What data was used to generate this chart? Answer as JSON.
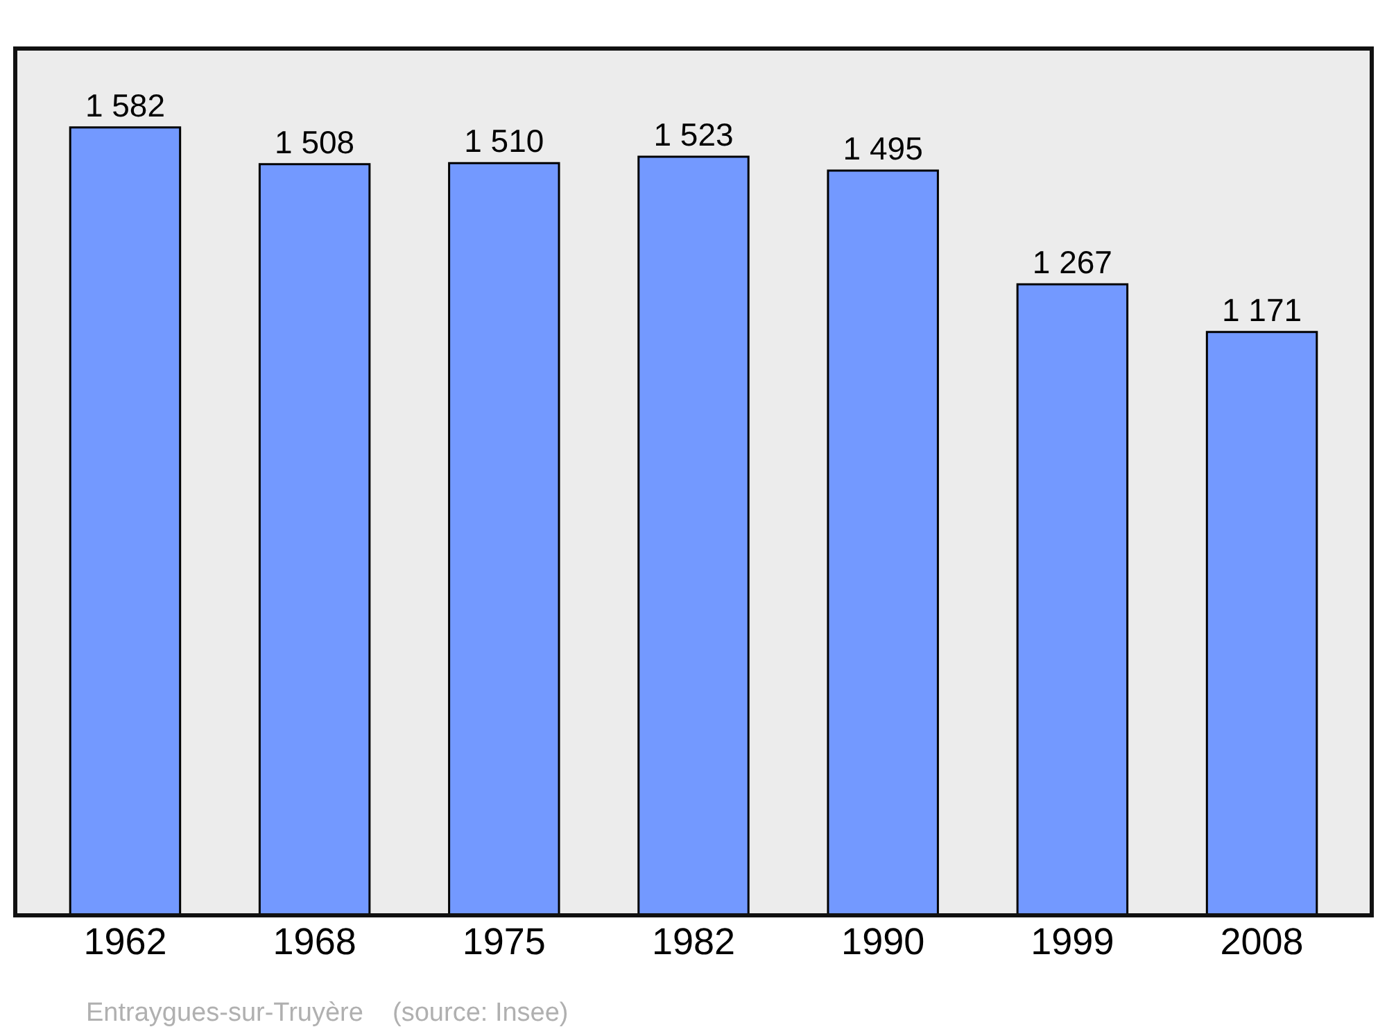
{
  "chart_data": {
    "type": "bar",
    "categories": [
      "1962",
      "1968",
      "1975",
      "1982",
      "1990",
      "1999",
      "2008"
    ],
    "values": [
      1582,
      1508,
      1510,
      1523,
      1495,
      1267,
      1171
    ],
    "value_labels": [
      "1 582",
      "1 508",
      "1 510",
      "1 523",
      "1 495",
      "1 267",
      "1 171"
    ],
    "color": "#7399ff",
    "grid": false,
    "legend": false,
    "annotations": [
      "Entraygues-sur-Truyère    (source: Insee)"
    ]
  }
}
